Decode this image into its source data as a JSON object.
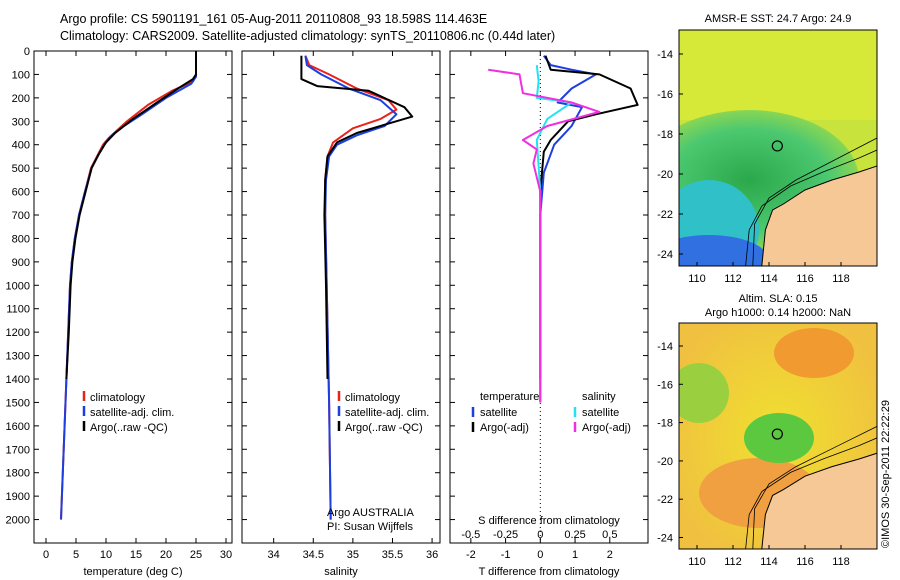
{
  "header": {
    "line1": "Argo profile: CS 5901191_161 05-Aug-2011 20110808_93 18.598S 114.463E",
    "line2": "Climatology: CARS2009. Satellite-adjusted climatology: synTS_20110806.nc (0.44d later)"
  },
  "stamp": "©IMOS 30-Sep-2011 22:22:29",
  "colors": {
    "climatology": "#e8221c",
    "satellite": "#1d3fe0",
    "argo": "#000000",
    "sal_sat": "#22e4f0",
    "sal_argo": "#f030e0"
  },
  "chart_data": [
    {
      "type": "line",
      "panel": "temperature",
      "xlabel": "temperature (deg C)",
      "ylabel": "",
      "xlim": [
        -2,
        31
      ],
      "ylim": [
        2100,
        0
      ],
      "x_ticks": [
        "0",
        "5",
        "10",
        "15",
        "20",
        "25",
        "30"
      ],
      "y_ticks": [
        "0",
        "100",
        "200",
        "300",
        "400",
        "500",
        "600",
        "700",
        "800",
        "900",
        "1000",
        "1100",
        "1200",
        "1300",
        "1400",
        "1500",
        "1600",
        "1700",
        "1800",
        "1900",
        "2000"
      ],
      "legend": [
        "climatology",
        "satellite-adj. clim.",
        "Argo(..raw -QC)"
      ],
      "series": [
        {
          "name": "climatology",
          "color": "climatology",
          "points": [
            [
              25,
              0
            ],
            [
              25,
              100
            ],
            [
              24.5,
              130
            ],
            [
              21,
              170
            ],
            [
              17,
              230
            ],
            [
              13.5,
              300
            ],
            [
              10.5,
              370
            ],
            [
              9.5,
              400
            ],
            [
              8.5,
              450
            ],
            [
              7.5,
              500
            ],
            [
              6.5,
              600
            ],
            [
              5.5,
              700
            ],
            [
              4.8,
              800
            ],
            [
              4.3,
              900
            ],
            [
              4,
              1000
            ],
            [
              3.7,
              1200
            ],
            [
              3.4,
              1400
            ],
            [
              3.1,
              1600
            ],
            [
              2.8,
              1800
            ],
            [
              2.5,
              2000
            ]
          ]
        },
        {
          "name": "satellite-adj. clim.",
          "color": "satellite",
          "points": [
            [
              25,
              0
            ],
            [
              25,
              110
            ],
            [
              24.2,
              140
            ],
            [
              20,
              200
            ],
            [
              16,
              270
            ],
            [
              13,
              320
            ],
            [
              11,
              360
            ],
            [
              9.7,
              400
            ],
            [
              8.6,
              450
            ],
            [
              7.6,
              500
            ],
            [
              6.5,
              600
            ],
            [
              5.5,
              700
            ],
            [
              4.8,
              800
            ],
            [
              4.3,
              900
            ],
            [
              4,
              1000
            ],
            [
              3.7,
              1200
            ],
            [
              3.4,
              1400
            ],
            [
              3.1,
              1600
            ],
            [
              2.8,
              1800
            ],
            [
              2.5,
              2000
            ]
          ]
        },
        {
          "name": "Argo(..raw -QC)",
          "color": "argo",
          "points": [
            [
              25,
              0
            ],
            [
              25,
              100
            ],
            [
              24.5,
              120
            ],
            [
              22,
              160
            ],
            [
              18.5,
              220
            ],
            [
              14.5,
              290
            ],
            [
              11.5,
              350
            ],
            [
              10,
              390
            ],
            [
              8.8,
              440
            ],
            [
              7.6,
              500
            ],
            [
              6.6,
              600
            ],
            [
              5.6,
              700
            ],
            [
              4.9,
              800
            ],
            [
              4.4,
              900
            ],
            [
              4.1,
              1000
            ],
            [
              3.8,
              1200
            ],
            [
              3.4,
              1400
            ]
          ]
        }
      ]
    },
    {
      "type": "line",
      "panel": "salinity",
      "xlabel": "salinity",
      "xlim": [
        33.6,
        36.1
      ],
      "ylim": [
        2100,
        0
      ],
      "x_ticks": [
        "34",
        "34.5",
        "35",
        "35.5",
        "36"
      ],
      "legend": [
        "climatology",
        "satellite-adj. clim.",
        "Argo(..raw -QC)"
      ],
      "annotation": [
        "Argo AUSTRALIA",
        "PI: Susan Wijffels"
      ],
      "series": [
        {
          "name": "climatology",
          "color": "climatology",
          "points": [
            [
              34.4,
              20
            ],
            [
              34.45,
              60
            ],
            [
              34.7,
              100
            ],
            [
              35.05,
              160
            ],
            [
              35.45,
              210
            ],
            [
              35.55,
              250
            ],
            [
              35.35,
              290
            ],
            [
              35.0,
              330
            ],
            [
              34.75,
              390
            ],
            [
              34.68,
              450
            ],
            [
              34.65,
              550
            ],
            [
              34.65,
              700
            ],
            [
              34.67,
              1000
            ],
            [
              34.7,
              1500
            ],
            [
              34.72,
              2000
            ]
          ]
        },
        {
          "name": "satellite-adj. clim.",
          "color": "satellite",
          "points": [
            [
              34.4,
              20
            ],
            [
              34.42,
              60
            ],
            [
              34.6,
              100
            ],
            [
              34.95,
              160
            ],
            [
              35.35,
              210
            ],
            [
              35.55,
              270
            ],
            [
              35.4,
              320
            ],
            [
              35.05,
              360
            ],
            [
              34.8,
              400
            ],
            [
              34.7,
              450
            ],
            [
              34.66,
              550
            ],
            [
              34.65,
              700
            ],
            [
              34.67,
              1000
            ],
            [
              34.7,
              1500
            ],
            [
              34.72,
              2000
            ]
          ]
        },
        {
          "name": "Argo(..raw -QC)",
          "color": "argo",
          "points": [
            [
              34.35,
              20
            ],
            [
              34.35,
              120
            ],
            [
              34.55,
              150
            ],
            [
              35.2,
              170
            ],
            [
              35.65,
              240
            ],
            [
              35.75,
              280
            ],
            [
              35.45,
              310
            ],
            [
              35.05,
              350
            ],
            [
              34.8,
              390
            ],
            [
              34.68,
              450
            ],
            [
              34.65,
              550
            ],
            [
              34.64,
              700
            ],
            [
              34.66,
              1000
            ],
            [
              34.68,
              1400
            ]
          ]
        }
      ]
    },
    {
      "type": "line",
      "panel": "difference",
      "xlabel": "T difference from climatology",
      "xlabel_top": "S difference from climatology",
      "xlim": [
        -2.6,
        3.1
      ],
      "ylim": [
        2100,
        0
      ],
      "x_ticks": [
        "-2",
        "-1",
        "0",
        "1",
        "2"
      ],
      "s_ticks": [
        "-0.5",
        "-0.25",
        "0",
        "0.25",
        "0.5"
      ],
      "legend_temperature": {
        "title": "temperature",
        "items": [
          "satellite",
          "Argo(-adj)"
        ]
      },
      "legend_salinity": {
        "title": "salinity",
        "items": [
          "satellite",
          "Argo(-adj)"
        ]
      },
      "series": [
        {
          "name": "satellite",
          "color": "satellite",
          "points": [
            [
              0.1,
              20
            ],
            [
              0.3,
              60
            ],
            [
              0.9,
              80
            ],
            [
              1.6,
              100
            ],
            [
              0.9,
              160
            ],
            [
              0.5,
              220
            ],
            [
              1.2,
              240
            ],
            [
              0.9,
              320
            ],
            [
              0.4,
              400
            ],
            [
              0.1,
              520
            ],
            [
              0,
              700
            ],
            [
              0,
              1000
            ],
            [
              0,
              1500
            ]
          ]
        },
        {
          "name": "Argo(-adj)",
          "color": "argo",
          "points": [
            [
              0.15,
              20
            ],
            [
              0.3,
              80
            ],
            [
              1.7,
              100
            ],
            [
              2.6,
              160
            ],
            [
              2.8,
              230
            ],
            [
              1.6,
              270
            ],
            [
              0.8,
              300
            ],
            [
              0.3,
              380
            ],
            [
              0.1,
              430
            ],
            [
              0,
              600
            ],
            [
              0,
              1000
            ],
            [
              0,
              1400
            ]
          ]
        },
        {
          "name": "satellite",
          "color": "sal_sat",
          "points": [
            [
              -0.1,
              60
            ],
            [
              -0.05,
              130
            ],
            [
              -0.1,
              200
            ],
            [
              0.9,
              220
            ],
            [
              0.6,
              250
            ],
            [
              0.2,
              290
            ],
            [
              -0.1,
              380
            ],
            [
              0,
              600
            ],
            [
              0,
              1000
            ],
            [
              0,
              1500
            ]
          ]
        },
        {
          "name": "Argo(-adj)",
          "color": "sal_argo",
          "points": [
            [
              -1.5,
              80
            ],
            [
              -0.6,
              100
            ],
            [
              -0.5,
              180
            ],
            [
              0.9,
              220
            ],
            [
              1.7,
              260
            ],
            [
              0.2,
              320
            ],
            [
              -0.5,
              380
            ],
            [
              -0.1,
              420
            ],
            [
              -0.2,
              480
            ],
            [
              0,
              600
            ],
            [
              0,
              1000
            ],
            [
              0,
              1500
            ]
          ]
        }
      ]
    },
    {
      "type": "heatmap",
      "panel": "sst-map",
      "title": "AMSR-E SST: 24.7 Argo: 24.9",
      "x_ticks": [
        "110",
        "112",
        "114",
        "116",
        "118"
      ],
      "y_ticks": [
        "-14",
        "-16",
        "-18",
        "-20",
        "-22",
        "-24"
      ],
      "xlim": [
        109,
        120
      ],
      "ylim": [
        -24.6,
        -12.8
      ],
      "argo_position": [
        114.463,
        -18.598
      ]
    },
    {
      "type": "heatmap",
      "panel": "sla-map",
      "title": "Altim. SLA: 0.15",
      "subtitle": "Argo h1000: 0.14 h2000: NaN",
      "x_ticks": [
        "110",
        "112",
        "114",
        "116",
        "118"
      ],
      "y_ticks": [
        "-14",
        "-16",
        "-18",
        "-20",
        "-22",
        "-24"
      ],
      "xlim": [
        109,
        120
      ],
      "ylim": [
        -24.6,
        -12.8
      ],
      "argo_position": [
        114.463,
        -18.598
      ]
    }
  ]
}
